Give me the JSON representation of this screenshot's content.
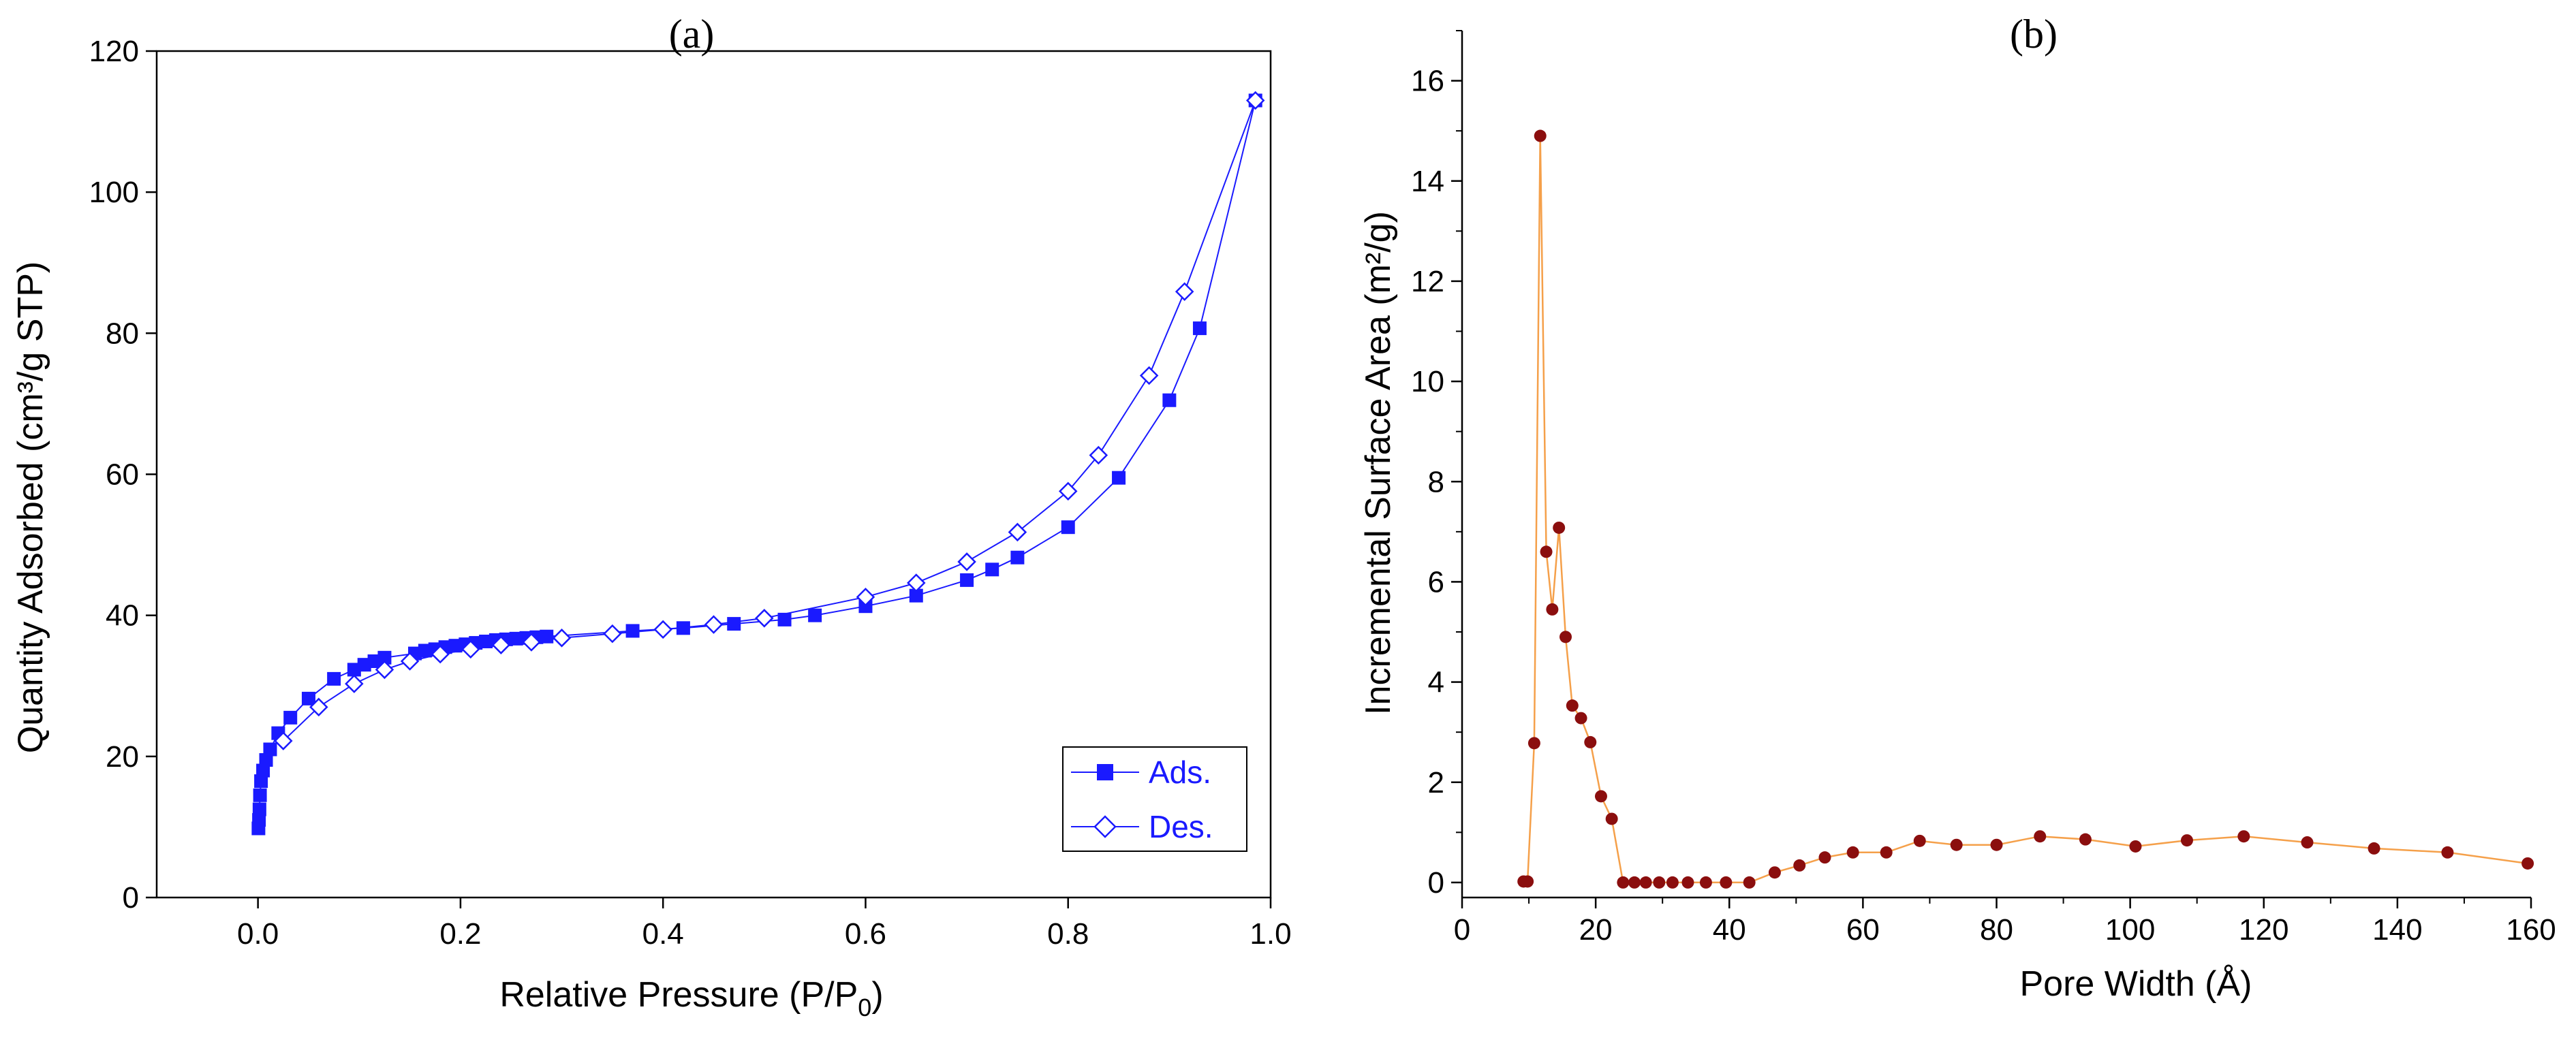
{
  "chart_data": [
    {
      "type": "line",
      "panel_label": "(a)",
      "title": "",
      "xlabel_main": "Relative Pressure (P/P",
      "xlabel_sub": "0",
      "xlabel_tail": ")",
      "ylabel": "Quantity Adsorbed (cm³/g STP)",
      "xlim": [
        -0.1,
        1.0
      ],
      "ylim": [
        0,
        120
      ],
      "xticks": [
        "0.0",
        "0.2",
        "0.4",
        "0.6",
        "0.8",
        "1.0"
      ],
      "yticks": [
        "0",
        "20",
        "40",
        "60",
        "80",
        "100",
        "120"
      ],
      "xtick_values": [
        0,
        0.2,
        0.4,
        0.6,
        0.8,
        1.0
      ],
      "ytick_values": [
        0,
        20,
        40,
        60,
        80,
        100,
        120
      ],
      "grid": false,
      "legend_position": "bottom-right",
      "series": [
        {
          "name": "Ads.",
          "color": "#1a1aff",
          "marker": "filled-square",
          "x": [
            0.0005,
            0.001,
            0.0015,
            0.002,
            0.003,
            0.005,
            0.008,
            0.012,
            0.02,
            0.032,
            0.05,
            0.075,
            0.095,
            0.105,
            0.115,
            0.125,
            0.155,
            0.165,
            0.175,
            0.185,
            0.195,
            0.205,
            0.215,
            0.225,
            0.235,
            0.245,
            0.255,
            0.265,
            0.275,
            0.285,
            0.37,
            0.42,
            0.47,
            0.52,
            0.55,
            0.6,
            0.65,
            0.7,
            0.725,
            0.75,
            0.8,
            0.85,
            0.9,
            0.93,
            0.985
          ],
          "y": [
            9.8,
            11,
            12.5,
            14.5,
            16.5,
            18,
            19.5,
            21,
            23.3,
            25.5,
            28.2,
            31,
            32.3,
            33,
            33.5,
            34,
            34.6,
            35,
            35.2,
            35.5,
            35.7,
            35.9,
            36.1,
            36.3,
            36.5,
            36.6,
            36.7,
            36.8,
            36.9,
            37,
            37.8,
            38.2,
            38.8,
            39.4,
            40,
            41.3,
            42.8,
            45,
            46.5,
            48.2,
            52.5,
            59.5,
            70.5,
            80.7,
            113
          ]
        },
        {
          "name": "Des.",
          "color": "#1a1aff",
          "marker": "hollow-diamond",
          "x": [
            0.985,
            0.915,
            0.88,
            0.83,
            0.8,
            0.75,
            0.7,
            0.65,
            0.6,
            0.5,
            0.45,
            0.4,
            0.35,
            0.3,
            0.27,
            0.24,
            0.21,
            0.18,
            0.15,
            0.125,
            0.095,
            0.06,
            0.025
          ],
          "y": [
            113,
            85.9,
            74,
            62.7,
            57.6,
            51.8,
            47.6,
            44.6,
            42.6,
            39.6,
            38.7,
            38,
            37.4,
            36.8,
            36.2,
            35.8,
            35.2,
            34.5,
            33.5,
            32.3,
            30.3,
            27,
            22.2
          ]
        }
      ]
    },
    {
      "type": "line",
      "panel_label": "(b)",
      "title": "",
      "xlabel": "Pore Width (Å)",
      "ylabel": "Incremental Surface Area (m²/g)",
      "xlim": [
        0,
        160
      ],
      "ylim": [
        -0.3,
        17
      ],
      "xticks": [
        "0",
        "20",
        "40",
        "60",
        "80",
        "100",
        "120",
        "140",
        "160"
      ],
      "yticks": [
        "0",
        "2",
        "4",
        "6",
        "8",
        "10",
        "12",
        "14",
        "16"
      ],
      "xtick_values": [
        0,
        20,
        40,
        60,
        80,
        100,
        120,
        140,
        160
      ],
      "ytick_values": [
        0,
        2,
        4,
        6,
        8,
        10,
        12,
        14,
        16
      ],
      "grid": false,
      "line_color": "#f5a04a",
      "marker_color": "#8b0e0e",
      "series": [
        {
          "name": "Incremental Surface Area",
          "x": [
            9.2,
            9.8,
            10.8,
            11.7,
            12.6,
            13.5,
            14.5,
            15.5,
            16.5,
            17.8,
            19.2,
            20.8,
            22.4,
            24.1,
            25.8,
            27.5,
            29.5,
            31.5,
            33.8,
            36.5,
            39.5,
            43,
            46.8,
            50.5,
            54.3,
            58.5,
            63.5,
            68.5,
            74,
            80,
            86.5,
            93.3,
            100.8,
            108.5,
            117,
            126.5,
            136.5,
            147.5,
            159.5
          ],
          "y": [
            0.02,
            0.02,
            2.78,
            14.9,
            6.6,
            5.45,
            7.08,
            4.9,
            3.53,
            3.28,
            2.8,
            1.72,
            1.27,
            0,
            0,
            0,
            0,
            0,
            0,
            0,
            0,
            0,
            0.2,
            0.34,
            0.5,
            0.6,
            0.6,
            0.83,
            0.75,
            0.75,
            0.92,
            0.86,
            0.72,
            0.84,
            0.92,
            0.8,
            0.68,
            0.6,
            0.38
          ]
        }
      ]
    }
  ]
}
